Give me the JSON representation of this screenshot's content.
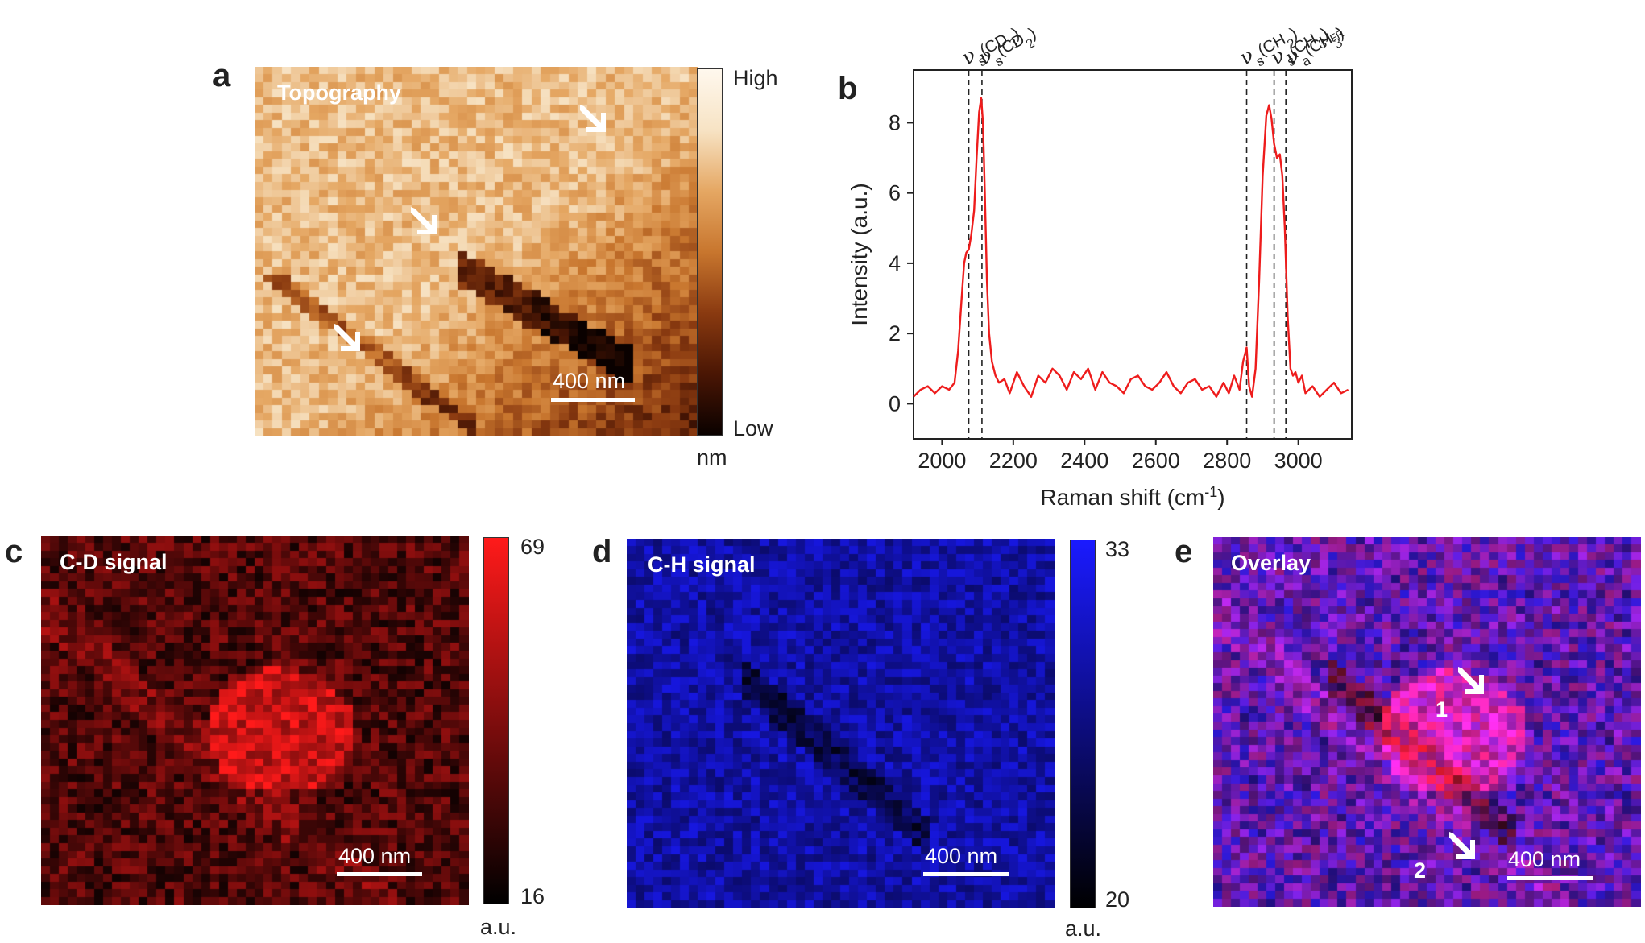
{
  "panels": {
    "a": {
      "letter": "a",
      "label": "Topography",
      "scale_bar": "400 nm",
      "colorbar": {
        "high": "High",
        "low": "Low",
        "unit": "nm"
      },
      "colors": [
        "#0a0100",
        "#4a1604",
        "#8a3a10",
        "#c8762e",
        "#e5a763",
        "#f7e3c4",
        "#fff8ee"
      ]
    },
    "b": {
      "letter": "b",
      "annotations": [
        {
          "main": "ν",
          "sub": "s",
          "rest": "(CD",
          "sub2": "3",
          "end": ")"
        },
        {
          "main": "ν",
          "sub": "s",
          "rest": "(CD",
          "sub2": "2",
          "end": ")"
        },
        {
          "main": "ν",
          "sub": "s",
          "rest": "(CH",
          "sub2": "2",
          "end": ")"
        },
        {
          "main": "ν",
          "sub": "s",
          "rest": "(CH",
          "sub2": "3",
          "end": ")",
          "sub3": "FR"
        },
        {
          "main": "ν",
          "sub": "a",
          "rest": "(CH",
          "sub2": "3",
          "end": ")"
        }
      ]
    },
    "c": {
      "letter": "c",
      "label": "C-D signal",
      "scale_bar": "400 nm",
      "colorbar": {
        "max": "69",
        "min": "16",
        "unit": "a.u."
      },
      "colors": [
        "#000000",
        "#ff1a1a"
      ]
    },
    "d": {
      "letter": "d",
      "label": "C-H signal",
      "scale_bar": "400 nm",
      "colorbar": {
        "max": "33",
        "min": "20",
        "unit": "a.u."
      },
      "colors": [
        "#000000",
        "#1a1aff"
      ]
    },
    "e": {
      "letter": "e",
      "label": "Overlay",
      "scale_bar": "400 nm",
      "arrow_labels": [
        "1",
        "2"
      ]
    }
  },
  "chart_data": {
    "type": "line",
    "title": "",
    "xlabel": "Raman shift (cm-1)",
    "ylabel": "Intensity (a.u.)",
    "xlim": [
      1920,
      3150
    ],
    "ylim": [
      -1,
      9.5
    ],
    "xticks": [
      2000,
      2200,
      2400,
      2600,
      2800,
      3000
    ],
    "yticks": [
      0,
      2,
      4,
      6,
      8
    ],
    "vlines": [
      2075,
      2112,
      2855,
      2932,
      2965
    ],
    "series": [
      {
        "color": "#ee1c1c",
        "x": [
          1920,
          1940,
          1960,
          1980,
          2000,
          2020,
          2035,
          2045,
          2055,
          2062,
          2068,
          2075,
          2082,
          2090,
          2097,
          2104,
          2110,
          2115,
          2120,
          2126,
          2132,
          2140,
          2150,
          2160,
          2175,
          2190,
          2210,
          2230,
          2250,
          2270,
          2290,
          2310,
          2330,
          2350,
          2370,
          2390,
          2410,
          2430,
          2450,
          2470,
          2490,
          2510,
          2530,
          2550,
          2570,
          2590,
          2610,
          2630,
          2650,
          2670,
          2690,
          2710,
          2730,
          2750,
          2770,
          2790,
          2805,
          2820,
          2835,
          2845,
          2855,
          2862,
          2870,
          2880,
          2890,
          2900,
          2910,
          2918,
          2925,
          2932,
          2940,
          2948,
          2955,
          2962,
          2970,
          2978,
          2985,
          2992,
          3000,
          3010,
          3020,
          3040,
          3060,
          3080,
          3100,
          3120,
          3140
        ],
        "y": [
          0.2,
          0.4,
          0.5,
          0.3,
          0.5,
          0.4,
          0.6,
          1.5,
          3.0,
          4.0,
          4.3,
          4.4,
          4.8,
          5.5,
          7.0,
          8.3,
          8.7,
          8.0,
          6.0,
          3.5,
          2.0,
          1.2,
          0.8,
          0.6,
          0.7,
          0.3,
          0.9,
          0.5,
          0.2,
          0.8,
          0.6,
          1.0,
          0.8,
          0.4,
          0.9,
          0.7,
          1.0,
          0.4,
          0.9,
          0.6,
          0.5,
          0.3,
          0.7,
          0.8,
          0.5,
          0.4,
          0.6,
          0.9,
          0.5,
          0.3,
          0.6,
          0.7,
          0.4,
          0.5,
          0.2,
          0.6,
          0.3,
          0.8,
          0.4,
          1.2,
          1.6,
          0.5,
          0.2,
          1.0,
          3.5,
          6.5,
          8.2,
          8.5,
          8.1,
          7.4,
          7.0,
          7.1,
          6.5,
          5.0,
          2.5,
          1.0,
          0.8,
          0.9,
          0.6,
          0.8,
          0.3,
          0.5,
          0.2,
          0.4,
          0.6,
          0.3,
          0.4
        ]
      }
    ]
  }
}
